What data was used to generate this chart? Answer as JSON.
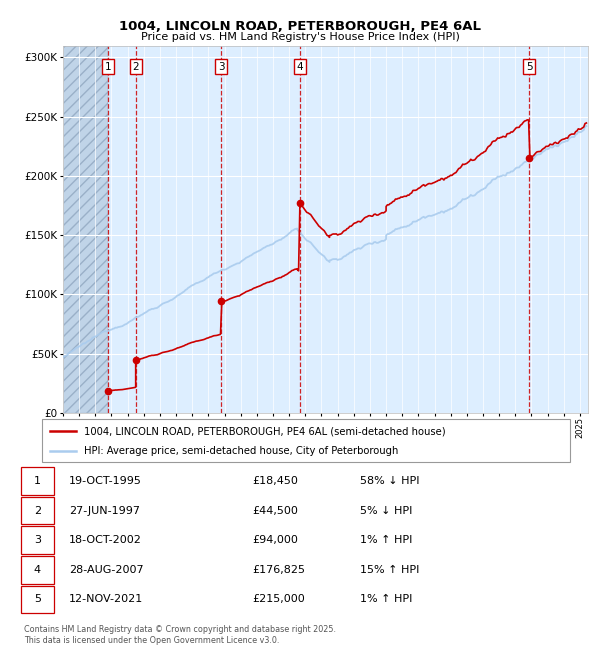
{
  "title1": "1004, LINCOLN ROAD, PETERBOROUGH, PE4 6AL",
  "title2": "Price paid vs. HM Land Registry's House Price Index (HPI)",
  "legend_line1": "1004, LINCOLN ROAD, PETERBOROUGH, PE4 6AL (semi-detached house)",
  "legend_line2": "HPI: Average price, semi-detached house, City of Peterborough",
  "table_rows": [
    {
      "num": "1",
      "date": "19-OCT-1995",
      "price": "£18,450",
      "hpi": "58% ↓ HPI"
    },
    {
      "num": "2",
      "date": "27-JUN-1997",
      "price": "£44,500",
      "hpi": "5% ↓ HPI"
    },
    {
      "num": "3",
      "date": "18-OCT-2002",
      "price": "£94,000",
      "hpi": "1% ↑ HPI"
    },
    {
      "num": "4",
      "date": "28-AUG-2007",
      "price": "£176,825",
      "hpi": "15% ↑ HPI"
    },
    {
      "num": "5",
      "date": "12-NOV-2021",
      "price": "£215,000",
      "hpi": "1% ↑ HPI"
    }
  ],
  "footnote": "Contains HM Land Registry data © Crown copyright and database right 2025.\nThis data is licensed under the Open Government Licence v3.0.",
  "sale_dates_x": [
    1995.8,
    1997.5,
    2002.8,
    2007.66,
    2021.87
  ],
  "sale_prices_y": [
    18450,
    44500,
    94000,
    176825,
    215000
  ],
  "hpi_color": "#aaccee",
  "price_color": "#cc0000",
  "sale_dot_color": "#cc0000",
  "vline_color": "#cc0000",
  "bg_color_main": "#ddeeff",
  "ylim": [
    0,
    310000
  ],
  "xlim_start": 1993.0,
  "xlim_end": 2025.5
}
